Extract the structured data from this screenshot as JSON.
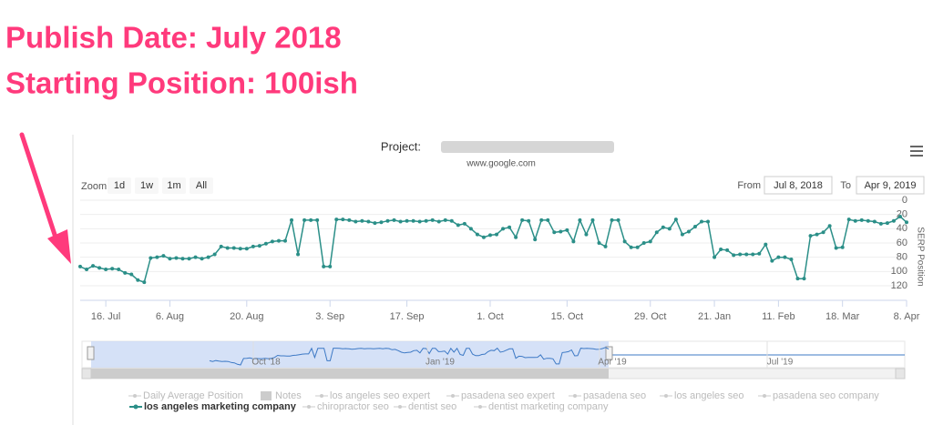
{
  "chart_data": {
    "type": "line",
    "annotations": [
      "Publish Date: July 2018",
      "Starting Position: 100ish"
    ],
    "title": "Project:",
    "subtitle": "www.google.com",
    "range_selector": {
      "label": "Zoom",
      "buttons": [
        "1d",
        "1w",
        "1m",
        "All"
      ],
      "from_label": "From",
      "from": "Jul 8, 2018",
      "to_label": "To",
      "to": "Apr 9, 2019"
    },
    "y_label": "SERP Position",
    "ylim": [
      0,
      120
    ],
    "y_reversed": true,
    "yticks": [
      0,
      20,
      40,
      60,
      80,
      100,
      120
    ],
    "grid": true,
    "categories": [
      null,
      null,
      null,
      null,
      "16. Jul",
      null,
      null,
      null,
      null,
      null,
      null,
      null,
      null,
      null,
      "6. Aug",
      null,
      null,
      null,
      null,
      null,
      null,
      null,
      null,
      null,
      null,
      null,
      "20. Aug",
      null,
      null,
      null,
      null,
      null,
      null,
      null,
      null,
      null,
      null,
      null,
      null,
      "3. Sep",
      null,
      null,
      null,
      null,
      null,
      null,
      null,
      null,
      null,
      null,
      null,
      "17. Sep",
      null,
      null,
      null,
      null,
      null,
      null,
      null,
      null,
      null,
      null,
      null,
      null,
      "1. Oct",
      null,
      null,
      null,
      null,
      null,
      null,
      null,
      null,
      null,
      null,
      null,
      "15. Oct",
      null,
      null,
      null,
      null,
      null,
      null,
      null,
      null,
      null,
      null,
      null,
      null,
      "29. Oct",
      null,
      null,
      null,
      null,
      null,
      null,
      null,
      null,
      null,
      "21. Jan",
      null,
      null,
      null,
      null,
      null,
      null,
      null,
      null,
      null,
      "11. Feb",
      null,
      null,
      null,
      null,
      null,
      null,
      null,
      null,
      null,
      "18. Mar",
      null,
      null,
      null,
      null,
      null,
      null,
      null,
      null,
      null,
      "8. Apr"
    ],
    "series": [
      {
        "name": "los angeles marketing company",
        "color": "#2b8f88",
        "values": [
          93,
          97,
          92,
          95,
          97,
          96,
          97,
          102,
          104,
          112,
          115,
          81,
          80,
          78,
          82,
          81,
          82,
          82,
          80,
          82,
          80,
          76,
          65,
          67,
          67,
          68,
          68,
          65,
          64,
          61,
          58,
          57,
          57,
          28,
          76,
          28,
          28,
          28,
          93,
          93,
          27,
          27,
          28,
          30,
          29,
          30,
          32,
          31,
          29,
          28,
          30,
          29,
          29,
          30,
          29,
          28,
          30,
          28,
          29,
          35,
          33,
          40,
          48,
          52,
          49,
          48,
          40,
          38,
          52,
          28,
          29,
          55,
          28,
          28,
          45,
          44,
          42,
          58,
          28,
          48,
          28,
          60,
          65,
          28,
          28,
          58,
          66,
          66,
          60,
          58,
          45,
          38,
          40,
          27,
          48,
          44,
          37,
          30,
          30,
          80,
          69,
          70,
          77,
          76,
          76,
          76,
          75,
          62,
          85,
          80,
          80,
          83,
          110,
          110,
          50,
          48,
          45,
          36,
          67,
          66,
          27,
          29,
          28,
          29,
          30,
          33,
          32,
          29,
          23,
          31
        ]
      }
    ],
    "hidden_legend": [
      "Daily Average Position",
      "Notes",
      "los angeles seo expert",
      "pasadena seo expert",
      "pasadena seo",
      "los angeles seo",
      "pasadena seo company",
      "chiropractor seo",
      "dentist seo",
      "dentist marketing company"
    ],
    "navigator_labels": [
      "Oct '18",
      "Jan '19",
      "Apr '19",
      "Jul '19"
    ]
  }
}
